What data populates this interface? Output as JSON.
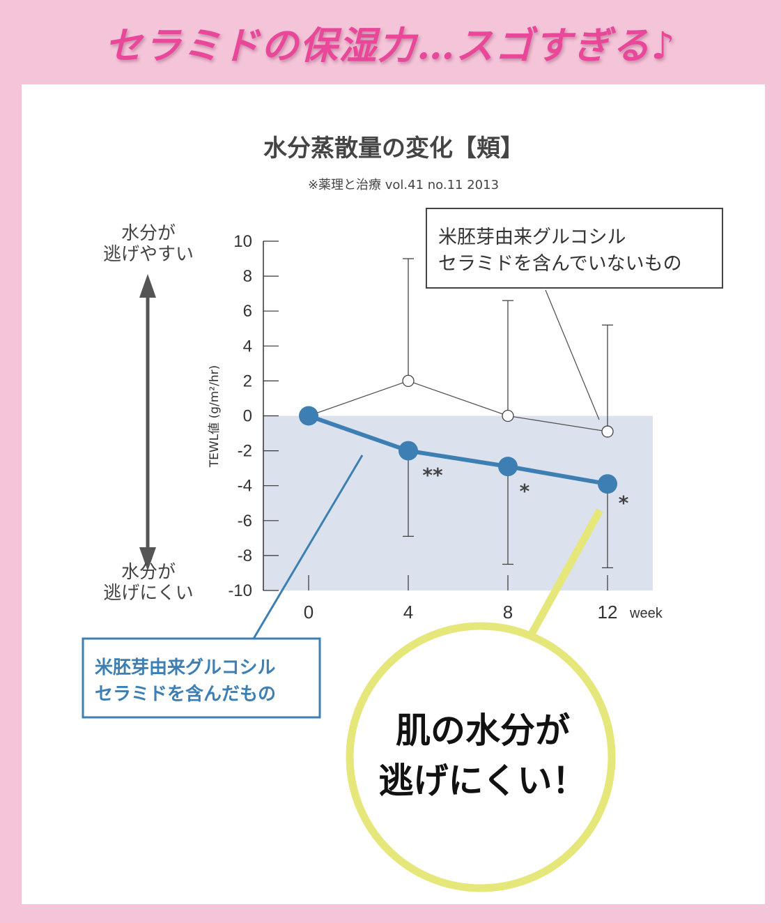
{
  "banner": {
    "text": "セラミドの保湿力…スゴすぎる♪"
  },
  "chart_data": {
    "type": "line",
    "title": "水分蒸散量の変化【頬】",
    "subtitle": "※薬理と治療 vol.41 no.11 2013",
    "ylabel": "TEWL値 (g/m²/hr)",
    "xlabel": "week",
    "ylim": [
      -10,
      10
    ],
    "yticks": [
      10,
      8,
      6,
      4,
      2,
      0,
      -2,
      -4,
      -6,
      -8,
      -10
    ],
    "x": [
      0,
      4,
      8,
      12
    ],
    "series": [
      {
        "name": "米胚芽由来グルコシル\nセラミドを含んでいないもの",
        "values": [
          0,
          2,
          0,
          -0.9
        ],
        "error_upper": [
          null,
          9,
          6.6,
          5.2
        ],
        "color": "#555555",
        "marker": "open-circle"
      },
      {
        "name": "米胚芽由来グルコシル\nセラミドを含んだもの",
        "values": [
          0,
          -2,
          -2.9,
          -3.9
        ],
        "error_lower": [
          null,
          -6.9,
          -8.5,
          -8.7
        ],
        "significance": [
          "",
          "**",
          "*",
          "*"
        ],
        "color": "#3d7fb3",
        "marker": "filled-circle"
      }
    ],
    "shaded_region": {
      "from": -10,
      "to": 0,
      "color": "#dbe2ee"
    },
    "arrow_labels": {
      "top": "水分が\n逃げやすい",
      "bottom": "水分が\n逃げにくい"
    },
    "callout": "肌の水分が\n逃げにくい！"
  }
}
